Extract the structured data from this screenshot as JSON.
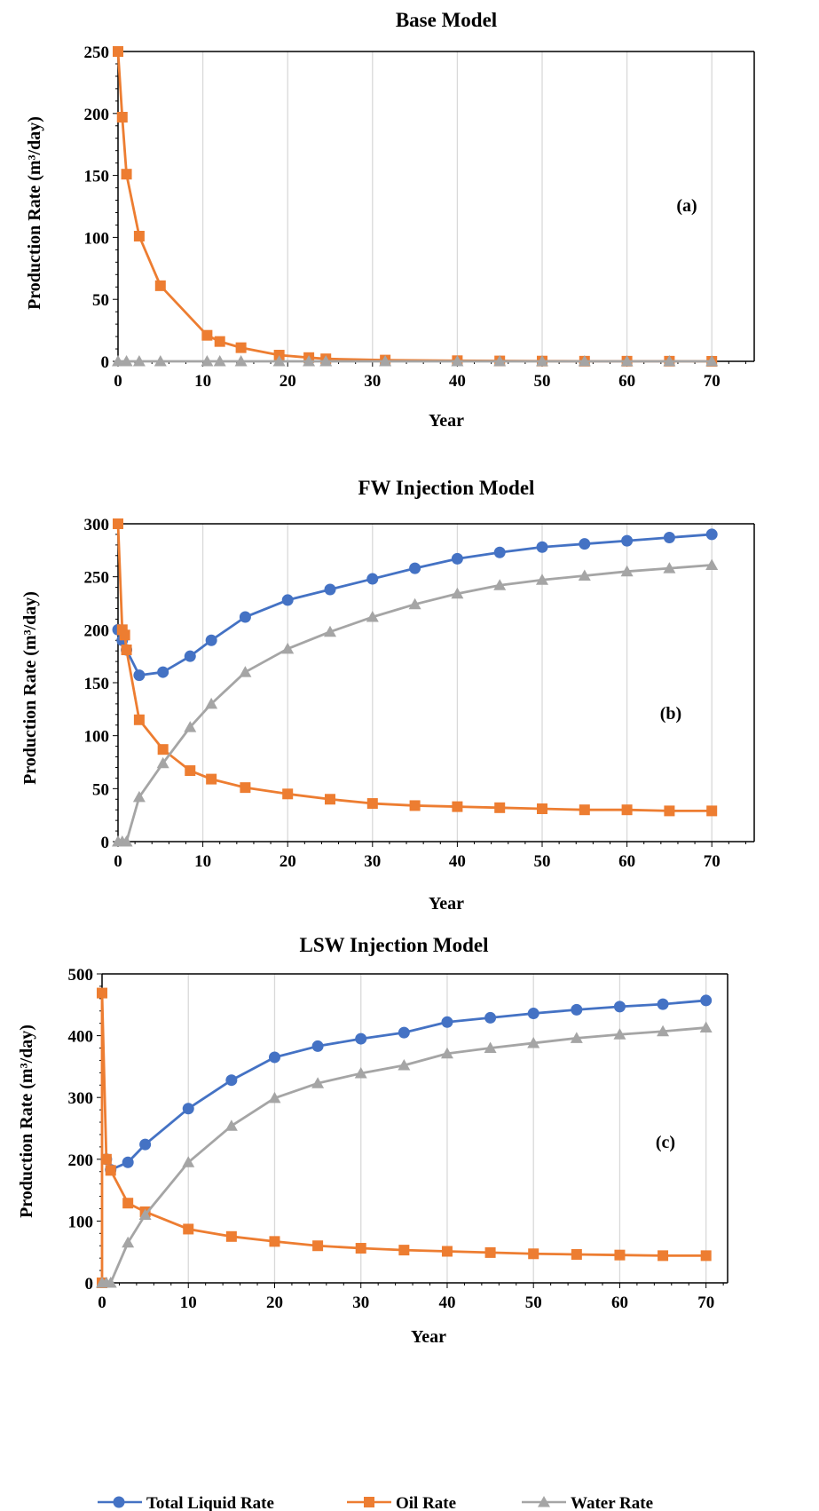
{
  "colors": {
    "total": "#4472C4",
    "oil": "#ED7D31",
    "water": "#A5A5A5",
    "grid": "#d9d9d9",
    "axis": "#000000"
  },
  "legend": {
    "items": [
      {
        "label": "Total Liquid Rate",
        "color": "#4472C4",
        "marker": "circle"
      },
      {
        "label": "Oil Rate",
        "color": "#ED7D31",
        "marker": "square"
      },
      {
        "label": "Water Rate",
        "color": "#A5A5A5",
        "marker": "triangle"
      }
    ]
  },
  "chart_data": [
    {
      "type": "line",
      "title": "Base Model",
      "annotation": "(a)",
      "xlabel": "Year",
      "ylabel": "Production Rate (m³/day)",
      "xlim": [
        0,
        75
      ],
      "ylim": [
        0,
        250
      ],
      "xticks": [
        0,
        10,
        20,
        30,
        40,
        50,
        60,
        70
      ],
      "yticks": [
        0,
        50,
        100,
        150,
        200,
        250
      ],
      "grid": "vertical",
      "series": [
        {
          "name": "Oil Rate",
          "marker": "square",
          "x": [
            0,
            0.5,
            1,
            2.5,
            5,
            10.5,
            12,
            14.5,
            19,
            22.5,
            24.5,
            31.5,
            40,
            45,
            50,
            55,
            60,
            65,
            70
          ],
          "y": [
            250,
            197,
            151,
            101,
            61,
            21,
            16,
            11,
            5,
            3,
            2,
            1,
            0.5,
            0.3,
            0.2,
            0.1,
            0.1,
            0.1,
            0
          ]
        },
        {
          "name": "Water Rate",
          "marker": "triangle",
          "x": [
            0,
            1,
            2.5,
            5,
            10.5,
            12,
            14.5,
            19,
            22.5,
            24.5,
            31.5,
            40,
            45,
            50,
            55,
            60,
            65,
            70
          ],
          "y": [
            0,
            0,
            0,
            0,
            0,
            0,
            0,
            0,
            0,
            0,
            0,
            0,
            0,
            0,
            0,
            0,
            0,
            0
          ]
        }
      ]
    },
    {
      "type": "line",
      "title": "FW Injection Model",
      "annotation": "(b)",
      "xlabel": "Year",
      "ylabel": "Production Rate (m³/day)",
      "xlim": [
        0,
        75
      ],
      "ylim": [
        0,
        300
      ],
      "xticks": [
        0,
        10,
        20,
        30,
        40,
        50,
        60,
        70
      ],
      "yticks": [
        0,
        50,
        100,
        150,
        200,
        250,
        300
      ],
      "grid": "vertical",
      "series": [
        {
          "name": "Total Liquid Rate",
          "marker": "circle",
          "x": [
            0,
            0.5,
            1,
            2.5,
            5.3,
            8.5,
            11,
            15,
            20,
            25,
            30,
            35,
            40,
            45,
            50,
            55,
            60,
            65,
            70
          ],
          "y": [
            200,
            190,
            181,
            157,
            160,
            175,
            190,
            212,
            228,
            238,
            248,
            258,
            267,
            273,
            278,
            281,
            284,
            287,
            290
          ]
        },
        {
          "name": "Oil Rate",
          "marker": "square",
          "x": [
            0,
            0.5,
            0.8,
            1,
            2.5,
            5.3,
            8.5,
            11,
            15,
            20,
            25,
            30,
            35,
            40,
            45,
            50,
            55,
            60,
            65,
            70
          ],
          "y": [
            300,
            200,
            195,
            181,
            115,
            87,
            67,
            59,
            51,
            45,
            40,
            36,
            34,
            33,
            32,
            31,
            30,
            30,
            29,
            29
          ]
        },
        {
          "name": "Water Rate",
          "marker": "triangle",
          "x": [
            0,
            0.5,
            1,
            2.5,
            5.3,
            8.5,
            11,
            15,
            20,
            25,
            30,
            35,
            40,
            45,
            50,
            55,
            60,
            65,
            70
          ],
          "y": [
            0,
            0,
            0,
            42,
            74,
            108,
            130,
            160,
            182,
            198,
            212,
            224,
            234,
            242,
            247,
            251,
            255,
            258,
            261
          ]
        }
      ]
    },
    {
      "type": "line",
      "title": "LSW Injection Model",
      "annotation": "(c)",
      "xlabel": "Year",
      "ylabel": "Production Rate (m³/day)",
      "xlim": [
        0,
        72.5
      ],
      "ylim": [
        0,
        500
      ],
      "xticks": [
        0,
        10,
        20,
        30,
        40,
        50,
        60,
        70
      ],
      "yticks": [
        0,
        100,
        200,
        300,
        400,
        500
      ],
      "grid": "vertical",
      "series": [
        {
          "name": "Total Liquid Rate",
          "marker": "circle",
          "x": [
            0.5,
            1,
            3,
            5,
            10,
            15,
            20,
            25,
            30,
            35,
            40,
            45,
            50,
            55,
            60,
            65,
            70
          ],
          "y": [
            200,
            183,
            195,
            224,
            282,
            328,
            365,
            383,
            395,
            405,
            422,
            429,
            436,
            442,
            447,
            451,
            457
          ]
        },
        {
          "name": "Oil Rate",
          "marker": "square",
          "x": [
            0,
            0,
            0.5,
            1,
            3,
            5,
            10,
            15,
            20,
            25,
            30,
            35,
            40,
            45,
            50,
            55,
            60,
            65,
            70
          ],
          "y": [
            0,
            469,
            200,
            182,
            129,
            115,
            87,
            75,
            67,
            60,
            56,
            53,
            51,
            49,
            47,
            46,
            45,
            44,
            44
          ]
        },
        {
          "name": "Water Rate",
          "marker": "triangle",
          "x": [
            0,
            0.5,
            1,
            3,
            5,
            10,
            15,
            20,
            25,
            30,
            35,
            40,
            45,
            50,
            55,
            60,
            65,
            70
          ],
          "y": [
            0,
            0,
            0,
            65,
            110,
            195,
            254,
            299,
            323,
            339,
            352,
            371,
            380,
            388,
            396,
            402,
            407,
            413
          ]
        }
      ]
    }
  ]
}
